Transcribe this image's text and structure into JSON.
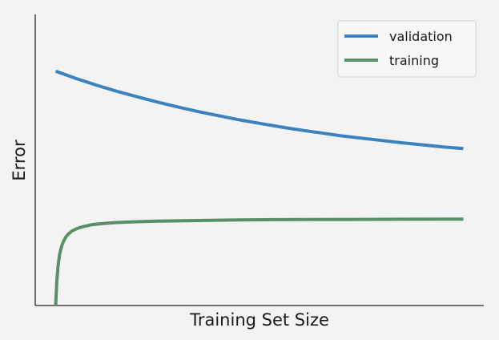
{
  "chart_data": {
    "type": "line",
    "title": "",
    "xlabel": "Training Set Size",
    "ylabel": "Error",
    "xlim": [
      0,
      110
    ],
    "ylim": [
      0,
      100
    ],
    "x_ticks_shown": false,
    "y_ticks_shown": false,
    "grid": false,
    "legend_position": "top-right",
    "series": [
      {
        "name": "validation",
        "color": "#3a83c0",
        "x": [
          5,
          10,
          15,
          20,
          25,
          30,
          35,
          40,
          45,
          50,
          55,
          60,
          65,
          70,
          75,
          80,
          85,
          90,
          95,
          100,
          105
        ],
        "y": [
          80.5,
          78.0,
          75.7,
          73.6,
          71.7,
          69.9,
          68.2,
          66.6,
          65.2,
          63.8,
          62.6,
          61.4,
          60.3,
          59.3,
          58.3,
          57.5,
          56.7,
          55.9,
          55.2,
          54.5,
          53.9
        ]
      },
      {
        "name": "training",
        "color": "#5a9068",
        "x": [
          5,
          5.3,
          5.6,
          6,
          6.5,
          7,
          7.5,
          8,
          9,
          10,
          11,
          12,
          14,
          16,
          20,
          25,
          30,
          40,
          50,
          60,
          80,
          105
        ],
        "y": [
          0,
          8.5,
          13.6,
          17.7,
          20.5,
          22.3,
          23.5,
          24.4,
          25.6,
          26.3,
          26.8,
          27.2,
          27.8,
          28.1,
          28.5,
          28.8,
          29.0,
          29.2,
          29.4,
          29.5,
          29.6,
          29.7
        ]
      }
    ]
  }
}
